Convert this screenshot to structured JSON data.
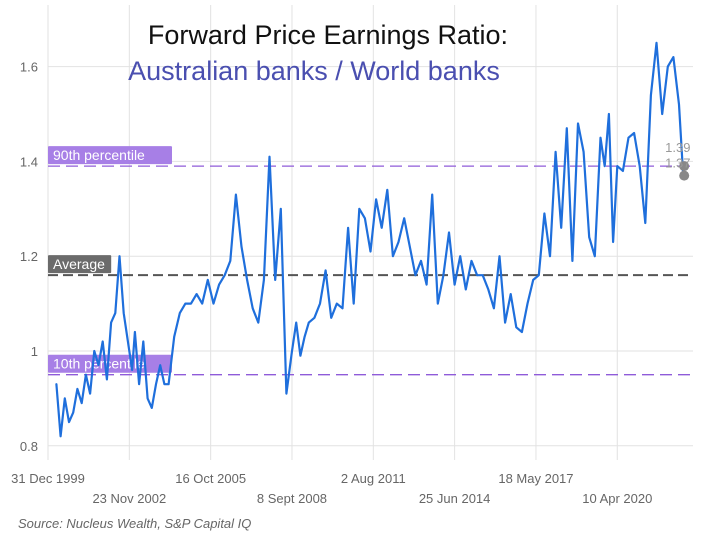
{
  "chart_data": {
    "type": "line",
    "title": "Forward Price Earnings Ratio:",
    "subtitle": "Australian banks / World banks",
    "xlabel": "",
    "ylabel": "",
    "ylim": [
      0.77,
      1.73
    ],
    "x_range": [
      "31 Dec 1999",
      "31 Dec 2022"
    ],
    "yticks": [
      {
        "value": 0.8,
        "label": "0.8"
      },
      {
        "value": 1.0,
        "label": "1"
      },
      {
        "value": 1.2,
        "label": "1.2"
      },
      {
        "value": 1.4,
        "label": "1.4"
      },
      {
        "value": 1.6,
        "label": "1.6"
      }
    ],
    "xticks": [
      {
        "year": 2000.0,
        "label": "31 Dec 1999",
        "row": 0
      },
      {
        "year": 2002.9,
        "label": "23 Nov 2002",
        "row": 1
      },
      {
        "year": 2005.8,
        "label": "16 Oct 2005",
        "row": 0
      },
      {
        "year": 2008.7,
        "label": "8 Sept 2008",
        "row": 1
      },
      {
        "year": 2011.6,
        "label": "2 Aug 2011",
        "row": 0
      },
      {
        "year": 2014.5,
        "label": "25 Jun 2014",
        "row": 1
      },
      {
        "year": 2017.4,
        "label": "18 May 2017",
        "row": 0
      },
      {
        "year": 2020.3,
        "label": "10 Apr 2020",
        "row": 1
      }
    ],
    "reference_lines": [
      {
        "name": "90th percentile",
        "value": 1.39,
        "color": "#8f5bd9"
      },
      {
        "name": "Average",
        "value": 1.16,
        "color": "#555555"
      },
      {
        "name": "10th percentile",
        "value": 0.95,
        "color": "#8f5bd9"
      }
    ],
    "end_labels": [
      {
        "text": "1.39",
        "value": 1.39
      },
      {
        "text": "1.37",
        "value": 1.37
      }
    ],
    "series": [
      {
        "name": "Australian banks / World banks",
        "color": "#1f6fdc",
        "x": [
          2000.3,
          2000.45,
          2000.6,
          2000.75,
          2000.9,
          2001.05,
          2001.2,
          2001.35,
          2001.5,
          2001.65,
          2001.8,
          2001.95,
          2002.1,
          2002.25,
          2002.4,
          2002.55,
          2002.7,
          2002.85,
          2003.0,
          2003.1,
          2003.25,
          2003.4,
          2003.55,
          2003.7,
          2003.85,
          2004.0,
          2004.15,
          2004.3,
          2004.5,
          2004.7,
          2004.9,
          2005.1,
          2005.3,
          2005.5,
          2005.7,
          2005.9,
          2006.1,
          2006.3,
          2006.5,
          2006.7,
          2006.9,
          2007.1,
          2007.3,
          2007.5,
          2007.7,
          2007.9,
          2008.1,
          2008.3,
          2008.5,
          2008.7,
          2008.85,
          2009.0,
          2009.15,
          2009.3,
          2009.5,
          2009.7,
          2009.9,
          2010.1,
          2010.3,
          2010.5,
          2010.7,
          2010.9,
          2011.1,
          2011.3,
          2011.5,
          2011.7,
          2011.9,
          2012.1,
          2012.3,
          2012.5,
          2012.7,
          2012.9,
          2013.1,
          2013.3,
          2013.5,
          2013.7,
          2013.9,
          2014.1,
          2014.3,
          2014.5,
          2014.7,
          2014.9,
          2015.1,
          2015.3,
          2015.5,
          2015.7,
          2015.9,
          2016.1,
          2016.3,
          2016.5,
          2016.7,
          2016.9,
          2017.1,
          2017.3,
          2017.5,
          2017.7,
          2017.9,
          2018.1,
          2018.3,
          2018.5,
          2018.7,
          2018.9,
          2019.1,
          2019.3,
          2019.5,
          2019.7,
          2019.85,
          2020.0,
          2020.15,
          2020.3,
          2020.5,
          2020.7,
          2020.9,
          2021.1,
          2021.3,
          2021.5,
          2021.7,
          2021.9,
          2022.1,
          2022.3,
          2022.5,
          2022.65
        ],
        "values": [
          0.93,
          0.82,
          0.9,
          0.85,
          0.87,
          0.92,
          0.89,
          0.95,
          0.91,
          1.0,
          0.97,
          1.02,
          0.94,
          1.06,
          1.08,
          1.2,
          1.08,
          1.02,
          0.96,
          1.04,
          0.93,
          1.02,
          0.9,
          0.88,
          0.93,
          0.97,
          0.93,
          0.93,
          1.03,
          1.08,
          1.1,
          1.1,
          1.12,
          1.1,
          1.15,
          1.1,
          1.14,
          1.16,
          1.19,
          1.33,
          1.22,
          1.15,
          1.09,
          1.06,
          1.15,
          1.41,
          1.15,
          1.3,
          0.91,
          1.0,
          1.06,
          0.99,
          1.03,
          1.06,
          1.07,
          1.1,
          1.17,
          1.07,
          1.1,
          1.09,
          1.26,
          1.1,
          1.3,
          1.28,
          1.21,
          1.32,
          1.26,
          1.34,
          1.2,
          1.23,
          1.28,
          1.22,
          1.16,
          1.19,
          1.14,
          1.33,
          1.1,
          1.16,
          1.25,
          1.14,
          1.2,
          1.13,
          1.19,
          1.16,
          1.16,
          1.13,
          1.09,
          1.2,
          1.06,
          1.12,
          1.05,
          1.04,
          1.1,
          1.15,
          1.16,
          1.29,
          1.2,
          1.42,
          1.26,
          1.47,
          1.19,
          1.48,
          1.42,
          1.24,
          1.2,
          1.45,
          1.39,
          1.5,
          1.23,
          1.39,
          1.38,
          1.45,
          1.46,
          1.39,
          1.27,
          1.54,
          1.65,
          1.5,
          1.6,
          1.62,
          1.52,
          1.37
        ]
      }
    ]
  },
  "source_text": "Source: Nucleus Wealth, S&P Capital IQ"
}
